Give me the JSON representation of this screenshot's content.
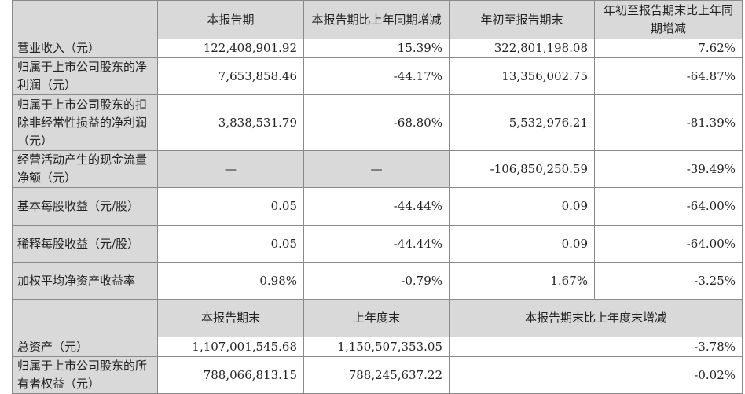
{
  "header": [
    "",
    "本报告期",
    "本报告期比上年同期增减",
    "年初至报告期末",
    "年初至报告期末比上年同期增减"
  ],
  "rows": [
    {
      "label": "营业收入（元）",
      "values": [
        "122,408,901.92",
        "15.39%",
        "322,801,198.08",
        "7.62%"
      ]
    },
    {
      "label": "归属于上市公司股东的净利润（元）",
      "values": [
        "7,653,858.46",
        "-44.17%",
        "13,356,002.75",
        "-64.87%"
      ]
    },
    {
      "label": "归属于上市公司股东的扣除非经常性损益的净利润（元）",
      "values": [
        "3,838,531.79",
        "-68.80%",
        "5,532,976.21",
        "-81.39%"
      ]
    },
    {
      "label": "经营活动产生的现金流量净额（元）",
      "values": [
        "—",
        "—",
        "-106,850,250.59",
        "-39.49%"
      ]
    },
    {
      "label": "基本每股收益（元/股）",
      "values": [
        "0.05",
        "-44.44%",
        "0.09",
        "-64.00%"
      ]
    },
    {
      "label": "稀释每股收益（元/股）",
      "values": [
        "0.05",
        "-44.44%",
        "0.09",
        "-64.00%"
      ]
    },
    {
      "label": "加权平均净资产收益率",
      "values": [
        "0.98%",
        "-0.79%",
        "1.67%",
        "-3.25%"
      ]
    }
  ],
  "header2": [
    "",
    "本报告期末",
    "上年度末",
    "本报告期末比上年度末增减"
  ],
  "rows2": [
    {
      "label": "总资产（元）",
      "values": [
        "1,107,001,545.68",
        "1,150,507,353.05",
        "-3.78%"
      ]
    },
    {
      "label": "归属于上市公司股东的所有者权益（元）",
      "values": [
        "788,066,813.15",
        "788,245,637.22",
        "-0.02%"
      ]
    }
  ]
}
